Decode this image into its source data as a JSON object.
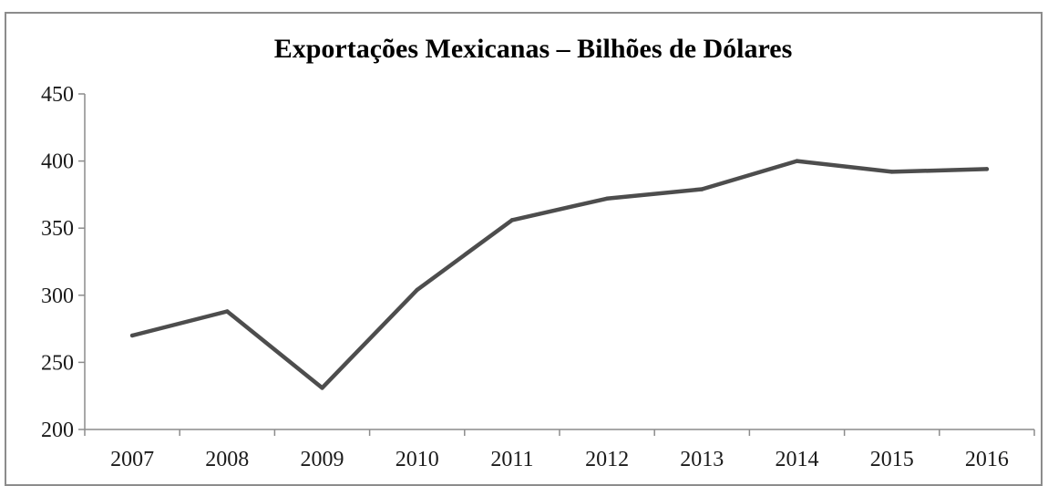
{
  "chart_data": {
    "type": "line",
    "title": "Exportações Mexicanas – Bilhões de Dólares",
    "xlabel": "",
    "ylabel": "",
    "categories": [
      "2007",
      "2008",
      "2009",
      "2010",
      "2011",
      "2012",
      "2013",
      "2014",
      "2015",
      "2016"
    ],
    "series": [
      {
        "values": [
          270,
          288,
          231,
          304,
          356,
          372,
          379,
          400,
          392,
          394
        ]
      }
    ],
    "ylim": [
      200,
      450
    ],
    "yticks": [
      200,
      250,
      300,
      350,
      400,
      450
    ],
    "grid": false,
    "legend": "none",
    "line_color": "#4d4d4d",
    "axis_color": "#8c8c8c"
  }
}
